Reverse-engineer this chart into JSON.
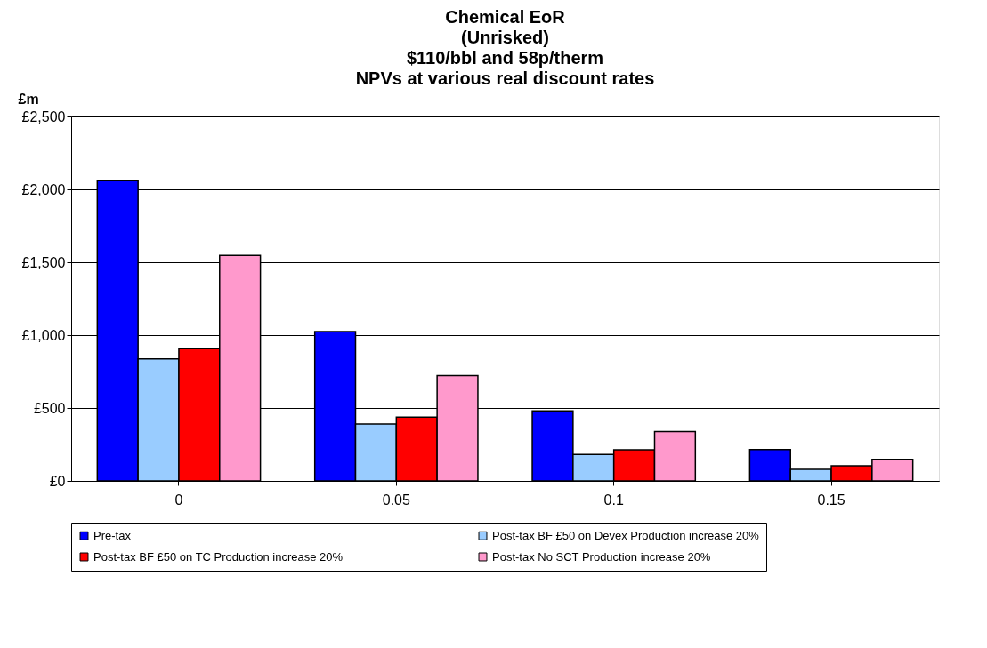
{
  "chart_data": {
    "type": "bar",
    "title": [
      "Chemical EoR",
      "(Unrisked)",
      "$110/bbl and 58p/therm",
      "NPVs at various real discount rates"
    ],
    "ylabel": "£m",
    "categories": [
      "0",
      "0.05",
      "0.1",
      "0.15"
    ],
    "series": [
      {
        "name": "Pre-tax",
        "color": "#0000ff",
        "values": [
          2060,
          1025,
          480,
          215
        ]
      },
      {
        "name": "Post-tax BF £50 on Devex Production increase 20%",
        "color": "#99ccff",
        "values": [
          837,
          390,
          181,
          80
        ]
      },
      {
        "name": "Post-tax BF £50 on TC Production increase 20%",
        "color": "#ff0000",
        "values": [
          907,
          438,
          214,
          104
        ]
      },
      {
        "name": "Post-tax No SCT Production increase 20%",
        "color": "#ff99cc",
        "values": [
          1548,
          722,
          338,
          148
        ]
      }
    ],
    "ylim": [
      0,
      2500
    ],
    "yticks": [
      {
        "value": 0,
        "label": "£0"
      },
      {
        "value": 500,
        "label": "£500"
      },
      {
        "value": 1000,
        "label": "£1,000"
      },
      {
        "value": 1500,
        "label": "£1,500"
      },
      {
        "value": 2000,
        "label": "£2,000"
      },
      {
        "value": 2500,
        "label": "£2,500"
      }
    ],
    "grid": "y",
    "legend": "bottom"
  }
}
